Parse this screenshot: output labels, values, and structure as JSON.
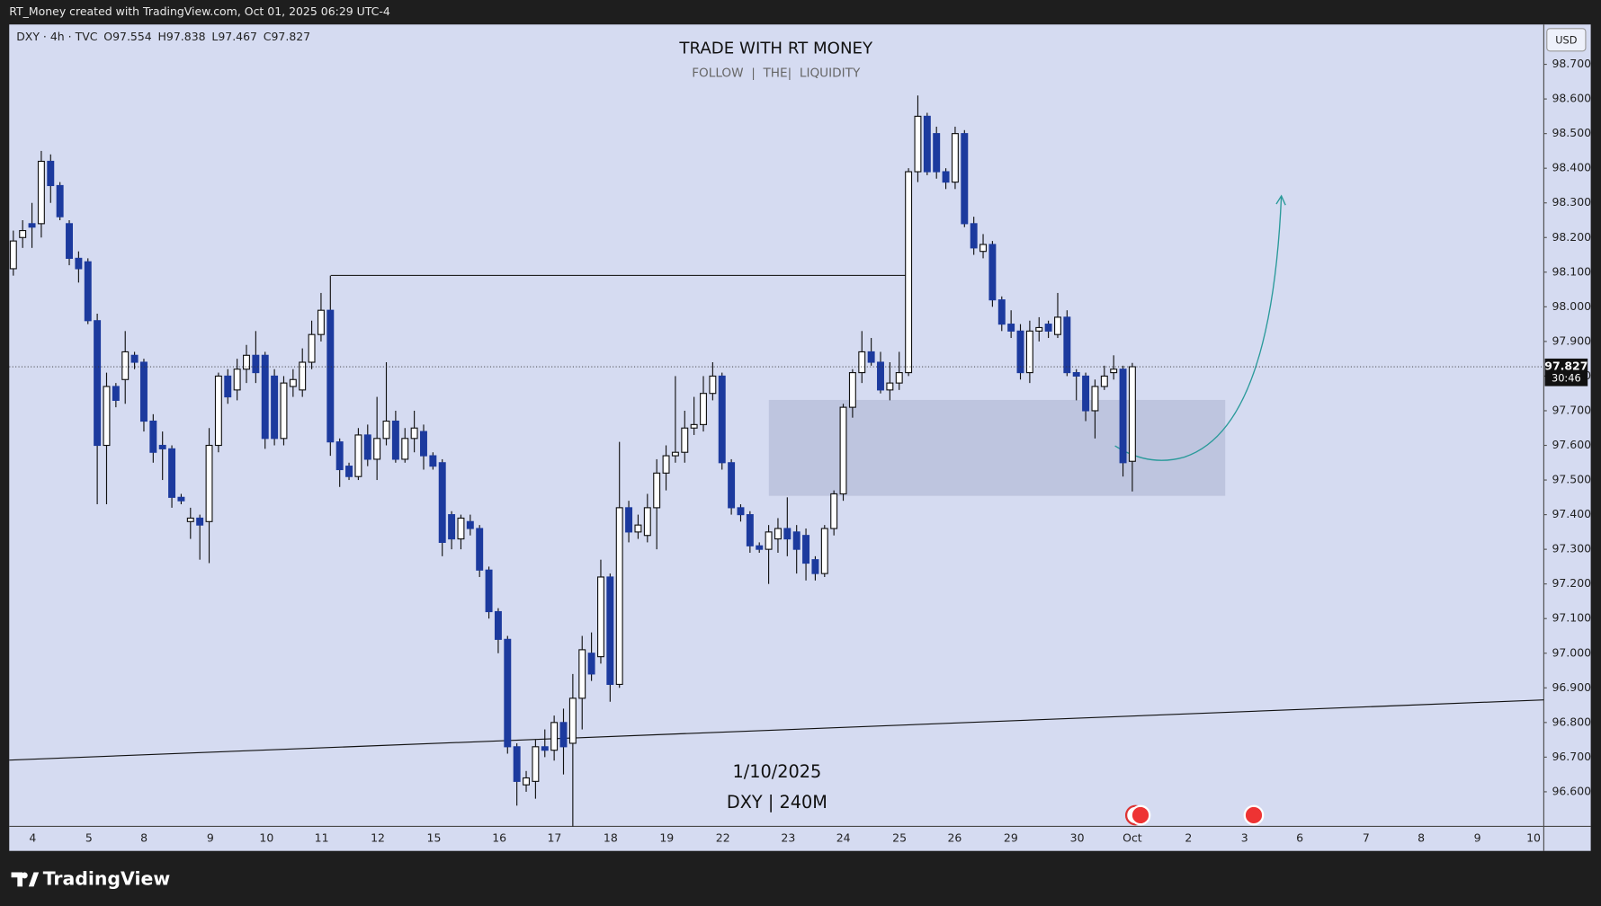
{
  "attribution": "RT_Money created with TradingView.com, Oct 01, 2025 06:29 UTC-4",
  "branding": "TradingView",
  "chart_data": {
    "type": "candlestick",
    "symbol": "DXY · 4h · TVC",
    "ohlc_letters": [
      "O",
      "H",
      "L",
      "C"
    ],
    "title": "TRADE WITH RT MONEY",
    "subtitle": "FOLLOW  |  THE|  LIQUIDITY",
    "annotations": [
      "1/10/2025",
      "DXY | 240M"
    ],
    "currency": "USD",
    "countdown": "30:46",
    "up_color": "#ffffff",
    "down_color": "#1c3a9e",
    "x_tick_labels": [
      "4",
      "5",
      "8",
      "9",
      "10",
      "11",
      "12",
      "15",
      "16",
      "17",
      "18",
      "19",
      "22",
      "23",
      "24",
      "25",
      "26",
      "29",
      "30",
      "Oct",
      "2",
      "3",
      "6",
      "7",
      "8",
      "9",
      "10"
    ],
    "open": [
      98.11,
      98.2,
      98.24,
      98.24,
      98.42,
      98.35,
      98.24,
      98.14,
      98.13,
      97.96,
      97.6,
      97.77,
      97.79,
      97.86,
      97.84,
      97.67,
      97.6,
      97.59,
      97.45,
      97.38,
      97.39,
      97.38,
      97.6,
      97.8,
      97.76,
      97.82,
      97.86,
      97.86,
      97.8,
      97.62,
      97.77,
      97.76,
      97.84,
      97.92,
      97.99,
      97.61,
      97.54,
      97.51,
      97.63,
      97.56,
      97.62,
      97.67,
      97.56,
      97.62,
      97.64,
      97.57,
      97.55,
      97.4,
      97.33,
      97.38,
      97.36,
      97.24,
      97.12,
      97.04,
      96.73,
      96.62,
      96.63,
      96.73,
      96.72,
      96.8,
      96.74,
      96.87,
      97.0,
      96.99,
      97.22,
      96.91,
      97.42,
      97.35,
      97.34,
      97.42,
      97.52,
      97.57,
      97.58,
      97.65,
      97.66,
      97.75,
      97.8,
      97.55,
      97.42,
      97.4,
      97.31,
      97.3,
      97.33,
      97.36,
      97.35,
      97.34,
      97.27,
      97.23,
      97.36,
      97.46,
      97.71,
      97.81,
      97.87,
      97.84,
      97.76,
      97.78,
      97.81,
      98.39,
      98.55,
      98.5,
      98.39,
      98.36,
      98.5,
      98.24,
      98.16,
      98.18,
      98.02,
      97.95,
      97.93,
      97.81,
      97.93,
      97.95,
      97.92,
      97.97,
      97.81,
      97.8,
      97.7,
      97.77,
      97.81,
      97.82,
      97.554
    ],
    "high": [
      98.22,
      98.25,
      98.3,
      98.45,
      98.44,
      98.36,
      98.25,
      98.16,
      98.14,
      97.98,
      97.81,
      97.78,
      97.93,
      97.87,
      97.85,
      97.69,
      97.64,
      97.6,
      97.46,
      97.42,
      97.4,
      97.65,
      97.81,
      97.82,
      97.85,
      97.89,
      97.93,
      97.87,
      97.82,
      97.8,
      97.82,
      97.88,
      97.96,
      98.04,
      98.09,
      97.62,
      97.55,
      97.65,
      97.66,
      97.74,
      97.84,
      97.7,
      97.65,
      97.7,
      97.66,
      97.58,
      97.56,
      97.41,
      97.4,
      97.4,
      97.37,
      97.25,
      97.13,
      97.05,
      96.74,
      96.66,
      96.75,
      96.78,
      96.82,
      96.84,
      96.94,
      97.05,
      97.06,
      97.27,
      97.23,
      97.61,
      97.44,
      97.4,
      97.46,
      97.56,
      97.6,
      97.8,
      97.7,
      97.74,
      97.8,
      97.84,
      97.81,
      97.56,
      97.43,
      97.41,
      97.32,
      97.37,
      97.39,
      97.45,
      97.37,
      97.36,
      97.28,
      97.37,
      97.47,
      97.72,
      97.82,
      97.93,
      97.91,
      97.87,
      97.84,
      97.87,
      98.4,
      98.61,
      98.56,
      98.52,
      98.4,
      98.52,
      98.51,
      98.26,
      98.21,
      98.19,
      98.03,
      97.99,
      97.95,
      97.96,
      97.97,
      97.96,
      98.04,
      97.99,
      97.82,
      97.81,
      97.79,
      97.83,
      97.86,
      97.83,
      97.838
    ],
    "low": [
      98.09,
      98.17,
      98.17,
      98.2,
      98.3,
      98.25,
      98.12,
      98.07,
      97.95,
      97.43,
      97.43,
      97.71,
      97.72,
      97.82,
      97.64,
      97.55,
      97.5,
      97.42,
      97.43,
      97.33,
      97.27,
      97.26,
      97.58,
      97.72,
      97.73,
      97.78,
      97.78,
      97.59,
      97.6,
      97.6,
      97.74,
      97.74,
      97.82,
      97.9,
      97.57,
      97.48,
      97.5,
      97.5,
      97.54,
      97.5,
      97.6,
      97.55,
      97.55,
      97.58,
      97.53,
      97.53,
      97.28,
      97.3,
      97.3,
      97.34,
      97.22,
      97.1,
      97.0,
      96.71,
      96.56,
      96.6,
      96.58,
      96.7,
      96.69,
      96.65,
      96.5,
      96.78,
      96.92,
      96.97,
      96.86,
      96.9,
      97.32,
      97.33,
      97.32,
      97.3,
      97.47,
      97.55,
      97.55,
      97.63,
      97.64,
      97.73,
      97.53,
      97.4,
      97.38,
      97.29,
      97.29,
      97.2,
      97.29,
      97.28,
      97.23,
      97.21,
      97.21,
      97.22,
      97.34,
      97.44,
      97.68,
      97.78,
      97.83,
      97.75,
      97.73,
      97.76,
      97.8,
      98.36,
      98.38,
      98.37,
      98.34,
      98.34,
      98.23,
      98.15,
      98.14,
      98.0,
      97.93,
      97.91,
      97.79,
      97.78,
      97.9,
      97.91,
      97.91,
      97.8,
      97.73,
      97.67,
      97.62,
      97.76,
      97.79,
      97.51,
      97.467
    ],
    "close": [
      98.19,
      98.22,
      98.23,
      98.42,
      98.35,
      98.26,
      98.14,
      98.11,
      97.96,
      97.6,
      97.77,
      97.73,
      97.87,
      97.84,
      97.67,
      97.58,
      97.59,
      97.45,
      97.44,
      97.39,
      97.37,
      97.6,
      97.8,
      97.74,
      97.82,
      97.86,
      97.81,
      97.62,
      97.62,
      97.78,
      97.79,
      97.84,
      97.92,
      97.99,
      97.61,
      97.53,
      97.51,
      97.63,
      97.56,
      97.62,
      97.67,
      97.56,
      97.62,
      97.65,
      97.57,
      97.54,
      97.32,
      97.33,
      97.39,
      97.36,
      97.24,
      97.12,
      97.04,
      96.73,
      96.63,
      96.64,
      96.73,
      96.72,
      96.8,
      96.73,
      96.87,
      97.01,
      96.94,
      97.22,
      96.91,
      97.42,
      97.35,
      97.37,
      97.42,
      97.52,
      97.57,
      97.58,
      97.65,
      97.66,
      97.75,
      97.8,
      97.55,
      97.42,
      97.4,
      97.31,
      97.3,
      97.35,
      97.36,
      97.33,
      97.3,
      97.26,
      97.23,
      97.36,
      97.46,
      97.71,
      97.81,
      97.87,
      97.84,
      97.76,
      97.78,
      97.81,
      98.39,
      98.55,
      98.39,
      98.39,
      98.36,
      98.5,
      98.24,
      98.17,
      98.18,
      98.02,
      97.95,
      97.93,
      97.81,
      97.93,
      97.94,
      97.93,
      97.97,
      97.81,
      97.8,
      97.7,
      97.77,
      97.8,
      97.82,
      97.55,
      97.827
    ],
    "ylim": [
      96.5,
      98.815
    ],
    "yticks": [
      {
        "value": 96.6,
        "label": "96.600"
      },
      {
        "value": 96.7,
        "label": "96.700"
      },
      {
        "value": 96.8,
        "label": "96.800"
      },
      {
        "value": 96.9,
        "label": "96.900"
      },
      {
        "value": 97.0,
        "label": "97.000"
      },
      {
        "value": 97.1,
        "label": "97.100"
      },
      {
        "value": 97.2,
        "label": "97.200"
      },
      {
        "value": 97.3,
        "label": "97.300"
      },
      {
        "value": 97.4,
        "label": "97.400"
      },
      {
        "value": 97.5,
        "label": "97.500"
      },
      {
        "value": 97.6,
        "label": "97.600"
      },
      {
        "value": 97.7,
        "label": "97.700"
      },
      {
        "value": 97.8,
        "label": "97.800"
      },
      {
        "value": 97.9,
        "label": "97.900"
      },
      {
        "value": 98.0,
        "label": "98.000"
      },
      {
        "value": 98.1,
        "label": "98.100"
      },
      {
        "value": 98.2,
        "label": "98.200"
      },
      {
        "value": 98.3,
        "label": "98.300"
      },
      {
        "value": 98.4,
        "label": "98.400"
      },
      {
        "value": 98.5,
        "label": "98.500"
      },
      {
        "value": 98.6,
        "label": "98.600"
      },
      {
        "value": 98.7,
        "label": "98.700"
      }
    ]
  }
}
